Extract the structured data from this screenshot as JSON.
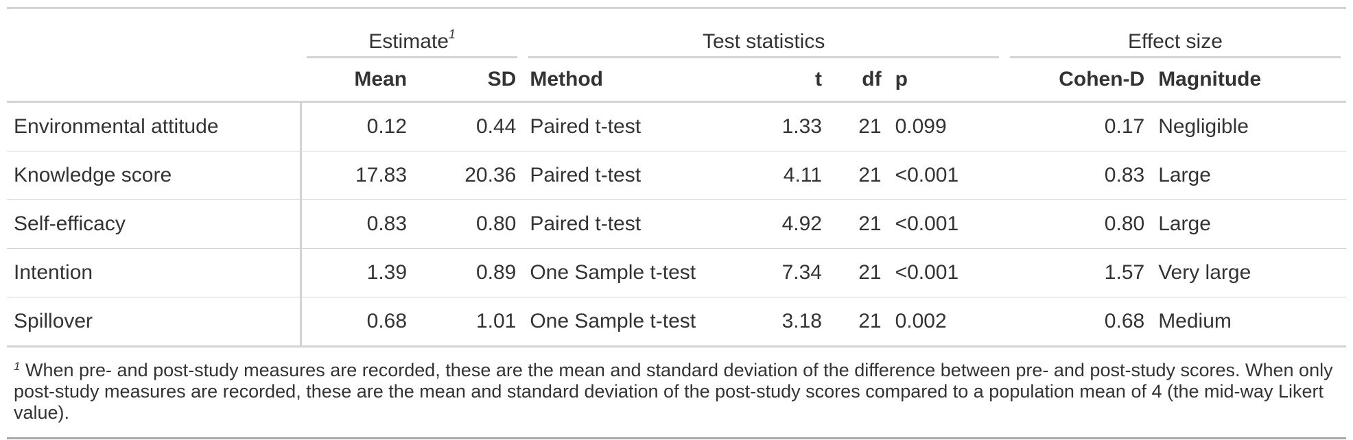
{
  "spanners": {
    "estimate": "Estimate",
    "estimate_mark": "1",
    "test_statistics": "Test statistics",
    "effect_size": "Effect size"
  },
  "columns": {
    "mean": "Mean",
    "sd": "SD",
    "method": "Method",
    "t": "t",
    "df": "df",
    "p": "p",
    "cohen_d": "Cohen-D",
    "magnitude": "Magnitude"
  },
  "rows": [
    {
      "label": "Environmental attitude",
      "mean": "0.12",
      "sd": "0.44",
      "method": "Paired t-test",
      "t": "1.33",
      "df": "21",
      "p": "0.099",
      "cohen_d": "0.17",
      "magnitude": "Negligible"
    },
    {
      "label": "Knowledge score",
      "mean": "17.83",
      "sd": "20.36",
      "method": "Paired t-test",
      "t": "4.11",
      "df": "21",
      "p": "<0.001",
      "cohen_d": "0.83",
      "magnitude": "Large"
    },
    {
      "label": "Self-efficacy",
      "mean": "0.83",
      "sd": "0.80",
      "method": "Paired t-test",
      "t": "4.92",
      "df": "21",
      "p": "<0.001",
      "cohen_d": "0.80",
      "magnitude": "Large"
    },
    {
      "label": "Intention",
      "mean": "1.39",
      "sd": "0.89",
      "method": "One Sample t-test",
      "t": "7.34",
      "df": "21",
      "p": "<0.001",
      "cohen_d": "1.57",
      "magnitude": "Very large"
    },
    {
      "label": "Spillover",
      "mean": "0.68",
      "sd": "1.01",
      "method": "One Sample t-test",
      "t": "3.18",
      "df": "21",
      "p": "0.002",
      "cohen_d": "0.68",
      "magnitude": "Medium"
    }
  ],
  "footnote": {
    "mark": "1",
    "text": "When pre- and post-study measures are recorded, these are the mean and standard deviation of the difference between pre- and post-study scores. When only post-study measures are recorded, these are the mean and standard deviation of the post-study scores compared to a population mean of 4 (the mid-way Likert value)."
  }
}
